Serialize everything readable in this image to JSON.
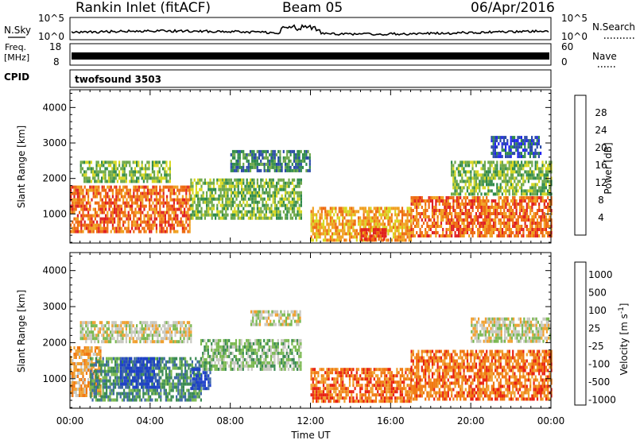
{
  "header": {
    "station": "Rankin Inlet (fitACF)",
    "beam": "Beam 05",
    "date": "06/Apr/2016"
  },
  "top_panels": {
    "nsky_label": "N.Sky",
    "nsky_ticks": [
      "10^5",
      "10^0"
    ],
    "nsearch_label": "N.Search",
    "freq_label_1": "Freq.",
    "freq_label_2": "[MHz]",
    "freq_ticks": [
      "18",
      "8"
    ],
    "nave_label": "Nave",
    "nave_ticks": [
      "60",
      "0"
    ],
    "cpid_label": "CPID",
    "cpid_value": "twofsound 3503"
  },
  "chart_data": [
    {
      "type": "heatmap",
      "title": "",
      "xlabel": "",
      "ylabel": "Slant Range [km]",
      "ylim": [
        180,
        4500
      ],
      "yticks": [
        1000,
        2000,
        3000,
        4000
      ],
      "xlim_hours": [
        0,
        24
      ],
      "colorbar_label": "Power [dB]",
      "colorbar_ticks": [
        4,
        8,
        12,
        16,
        20,
        24,
        28
      ],
      "colorscale": [
        "#1e22ee",
        "#2a4aa8",
        "#2f8a4a",
        "#6ea84a",
        "#d8d820",
        "#f0a020",
        "#ee6a10",
        "#e02020"
      ],
      "echo_regions": [
        {
          "x0": 0.0,
          "x1": 6.0,
          "y0": 500,
          "y1": 1800,
          "level": 7
        },
        {
          "x0": 0.5,
          "x1": 5.0,
          "y0": 1900,
          "y1": 2500,
          "level": 4
        },
        {
          "x0": 6.0,
          "x1": 11.5,
          "y0": 900,
          "y1": 2000,
          "level": 4
        },
        {
          "x0": 8.0,
          "x1": 12.0,
          "y0": 2200,
          "y1": 2800,
          "level": 3
        },
        {
          "x0": 12.0,
          "x1": 17.0,
          "y0": 250,
          "y1": 1200,
          "level": 6
        },
        {
          "x0": 14.5,
          "x1": 15.8,
          "y0": 300,
          "y1": 600,
          "level": 8
        },
        {
          "x0": 17.0,
          "x1": 24.0,
          "y0": 400,
          "y1": 1500,
          "level": 7
        },
        {
          "x0": 19.0,
          "x1": 24.0,
          "y0": 1600,
          "y1": 2500,
          "level": 4
        },
        {
          "x0": 21.0,
          "x1": 23.5,
          "y0": 2600,
          "y1": 3200,
          "level": 2
        }
      ]
    },
    {
      "type": "heatmap",
      "title": "",
      "xlabel": "Time UT",
      "ylabel": "Slant Range [km]",
      "ylim": [
        180,
        4500
      ],
      "yticks": [
        1000,
        2000,
        3000,
        4000
      ],
      "xlim_hours": [
        0,
        24
      ],
      "xticks": [
        "00:00",
        "04:00",
        "08:00",
        "12:00",
        "16:00",
        "20:00",
        "00:00"
      ],
      "colorbar_label": "Velocity [m s^-1]",
      "colorbar_ticks": [
        "1000",
        "500",
        "100",
        "25",
        "-25",
        "-100",
        "-500",
        "-1000"
      ],
      "colorscale": [
        "#1e40c8",
        "#3e68a8",
        "#3a8a52",
        "#7ab850",
        "#c8c8c0",
        "#f0a030",
        "#f07810",
        "#e82010"
      ],
      "echo_regions": [
        {
          "x0": 0.0,
          "x1": 1.5,
          "y0": 500,
          "y1": 1900,
          "level": 6
        },
        {
          "x0": 1.0,
          "x1": 6.5,
          "y0": 400,
          "y1": 1600,
          "level": 3
        },
        {
          "x0": 2.5,
          "x1": 4.5,
          "y0": 800,
          "y1": 1600,
          "level": 1
        },
        {
          "x0": 6.0,
          "x1": 7.0,
          "y0": 700,
          "y1": 1300,
          "level": 1
        },
        {
          "x0": 0.5,
          "x1": 6.0,
          "y0": 2000,
          "y1": 2600,
          "level": 5
        },
        {
          "x0": 6.5,
          "x1": 11.5,
          "y0": 1300,
          "y1": 2100,
          "level": 4
        },
        {
          "x0": 9.0,
          "x1": 11.5,
          "y0": 2500,
          "y1": 2900,
          "level": 5
        },
        {
          "x0": 12.0,
          "x1": 17.0,
          "y0": 400,
          "y1": 1300,
          "level": 7
        },
        {
          "x0": 17.0,
          "x1": 24.0,
          "y0": 400,
          "y1": 1800,
          "level": 7
        },
        {
          "x0": 20.0,
          "x1": 24.0,
          "y0": 2000,
          "y1": 2700,
          "level": 5
        }
      ]
    }
  ]
}
